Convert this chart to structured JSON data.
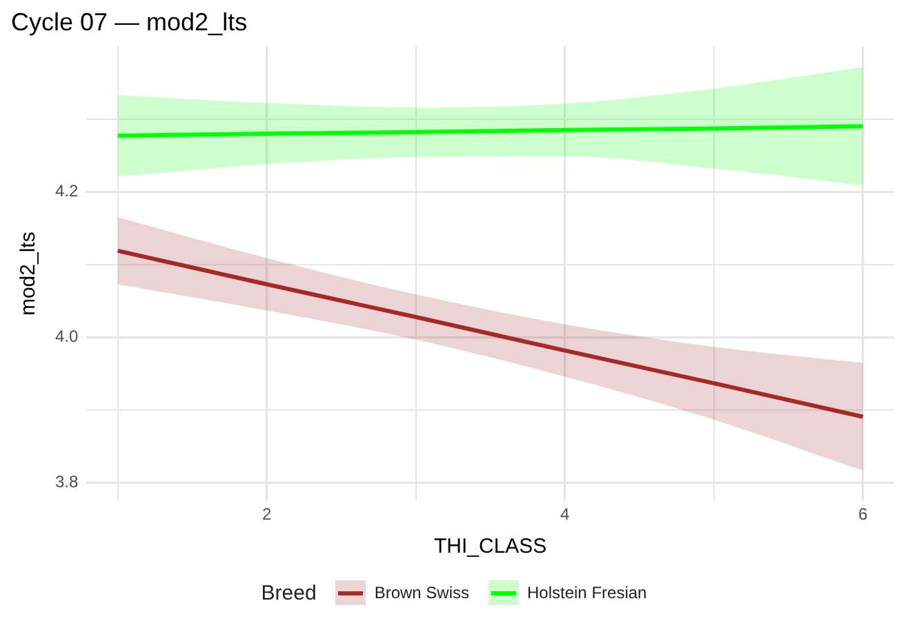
{
  "chart_data": {
    "type": "line",
    "title": "Cycle 07 — mod2_lts",
    "xlabel": "THI_CLASS",
    "ylabel": "mod2_lts",
    "legend_title": "Breed",
    "legend": "bottom",
    "grid": true,
    "marker": "none",
    "line_style": "solid",
    "x": [
      1,
      2,
      3,
      4,
      5,
      6
    ],
    "xlim": [
      0.79,
      6.21
    ],
    "xticks": [
      {
        "value": 1,
        "label": null
      },
      2,
      {
        "value": 3,
        "label": null
      },
      4,
      {
        "value": 5,
        "label": null
      },
      6
    ],
    "ylim": [
      3.775,
      4.4
    ],
    "yticks": [
      3.8,
      {
        "value": 3.9,
        "label": null
      },
      {
        "value": 4,
        "label": "4.0"
      },
      {
        "value": 4.1,
        "label": null
      },
      4.2,
      {
        "value": 4.3,
        "label": null
      }
    ],
    "series": [
      {
        "name": "Brown Swiss",
        "color": "#a52a2a",
        "values": [
          4.119,
          4.073,
          4.028,
          3.982,
          3.937,
          3.891
        ],
        "lower": [
          4.073,
          4.037,
          3.997,
          3.946,
          3.887,
          3.817
        ],
        "upper": [
          4.165,
          4.109,
          4.059,
          4.018,
          3.987,
          3.965
        ]
      },
      {
        "name": "Holstein Fresian",
        "color": "#00ff00",
        "values": [
          4.277,
          4.28,
          4.282,
          4.285,
          4.287,
          4.29
        ],
        "lower": [
          4.221,
          4.238,
          4.248,
          4.249,
          4.232,
          4.209
        ],
        "upper": [
          4.333,
          4.322,
          4.316,
          4.321,
          4.342,
          4.371
        ]
      }
    ]
  }
}
